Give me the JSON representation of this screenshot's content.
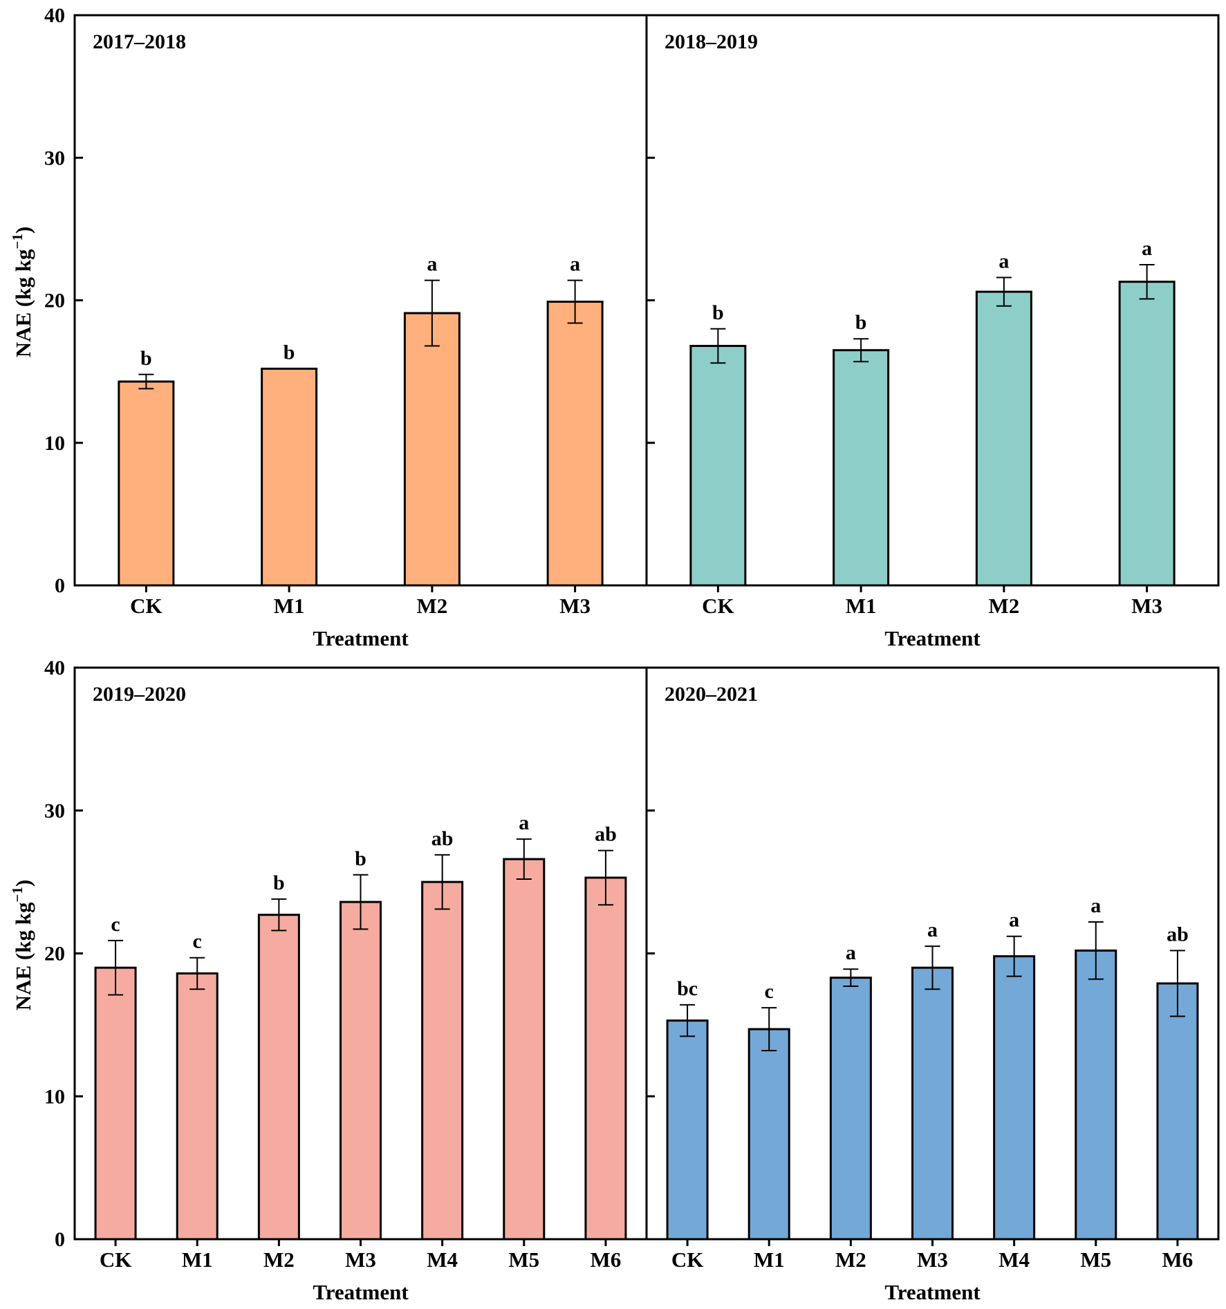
{
  "chart_data": {
    "type": "bar",
    "ylabel_main": "NAE (kg kg",
    "ylabel_sup": "−1",
    "ylabel_close": ")",
    "xlabel": "Treatment",
    "ylim": [
      0,
      40
    ],
    "yticks": [
      "0",
      "10",
      "20",
      "30",
      "40"
    ],
    "panels": [
      {
        "title": "2017–2018",
        "color": "#FFB07C",
        "categories": [
          "CK",
          "M1",
          "M2",
          "M3"
        ],
        "values": [
          14.3,
          15.2,
          19.1,
          19.9
        ],
        "errors": [
          0.5,
          0.0,
          2.3,
          1.5
        ],
        "letters": [
          "b",
          "b",
          "a",
          "a"
        ]
      },
      {
        "title": "2018–2019",
        "color": "#8ECEC9",
        "categories": [
          "CK",
          "M1",
          "M2",
          "M3"
        ],
        "values": [
          16.8,
          16.5,
          20.6,
          21.3
        ],
        "errors": [
          1.2,
          0.8,
          1.0,
          1.2
        ],
        "letters": [
          "b",
          "b",
          "a",
          "a"
        ]
      },
      {
        "title": "2019–2020",
        "color": "#F5AB9F",
        "categories": [
          "CK",
          "M1",
          "M2",
          "M3",
          "M4",
          "M5",
          "M6"
        ],
        "values": [
          19.0,
          18.6,
          22.7,
          23.6,
          25.0,
          26.6,
          25.3
        ],
        "errors": [
          1.9,
          1.1,
          1.1,
          1.9,
          1.9,
          1.4,
          1.9
        ],
        "letters": [
          "c",
          "c",
          "b",
          "b",
          "ab",
          "a",
          "ab"
        ]
      },
      {
        "title": "2020–2021",
        "color": "#74A8D7",
        "categories": [
          "CK",
          "M1",
          "M2",
          "M3",
          "M4",
          "M5",
          "M6"
        ],
        "values": [
          15.3,
          14.7,
          18.3,
          19.0,
          19.8,
          20.2,
          17.9
        ],
        "errors": [
          1.1,
          1.5,
          0.6,
          1.5,
          1.4,
          2.0,
          2.3
        ],
        "letters": [
          "bc",
          "c",
          "a",
          "a",
          "a",
          "a",
          "ab"
        ]
      }
    ]
  }
}
